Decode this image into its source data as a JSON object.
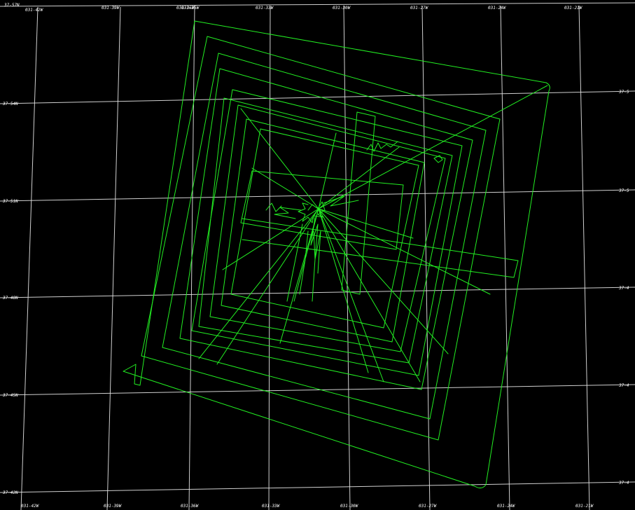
{
  "map": {
    "background": "#000000",
    "grid_color": "#e6e6e6",
    "track_color": "#22ee22",
    "top_corner_label": "37-57N",
    "top_overlap_label": "031-36W",
    "lon_labels_top": [
      "031-42W",
      "031-39W",
      "031-36W",
      "031-33W",
      "031-30W",
      "031-27W",
      "031-24W",
      "031-21W"
    ],
    "lon_labels_bottom": [
      "031-42W",
      "031-39W",
      "031-36W",
      "031-33W",
      "031-30W",
      "031-27W",
      "031-24W",
      "031-21W"
    ],
    "lat_labels_left": [
      "37-54N",
      "37-51N",
      "37-48N",
      "37-45N",
      "37-42N"
    ],
    "lat_labels_right": [
      "37-5",
      "37-5",
      "37-4",
      "37-4",
      "37-4"
    ]
  }
}
